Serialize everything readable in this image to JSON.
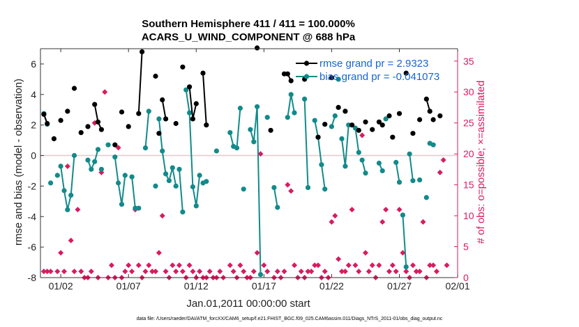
{
  "chart_data": {
    "type": "line",
    "title": [
      "Southern Hemisphere 411 / 411 = 100.000%",
      "ACARS_U_WIND_COMPONENT @ 688 hPa"
    ],
    "xlabel": "Jan.01,2011 00:00:00 start",
    "ylabel": "rmse and bias (model - observation)",
    "ylabel_right": "# of obs: o=possible; ×=assimilated",
    "xlim": [
      0.5,
      31.3
    ],
    "ylim": [
      -8,
      7
    ],
    "ylim_right": [
      0,
      37
    ],
    "xticks": [
      {
        "v": 2,
        "label": "01/02"
      },
      {
        "v": 7,
        "label": "01/07"
      },
      {
        "v": 12,
        "label": "01/12"
      },
      {
        "v": 17,
        "label": "01/17"
      },
      {
        "v": 22,
        "label": "01/22"
      },
      {
        "v": 27,
        "label": "01/27"
      },
      {
        "v": 31.3,
        "label": "02/01"
      }
    ],
    "yticks": [
      -8,
      -6,
      -4,
      -2,
      0,
      2,
      4,
      6
    ],
    "yticks_right": [
      0,
      5,
      10,
      15,
      20,
      25,
      30,
      35
    ],
    "legend_position": "top-right",
    "colors": {
      "rmse": "#000000",
      "bias": "#128a8a",
      "obs": "#d81b60",
      "zero": "#e6c8cc",
      "legend_text": "#1565d8"
    },
    "series": [
      {
        "name": "rmse grand pr = 2.9323",
        "key": "rmse",
        "segments": [
          [
            [
              0.75,
              2.7
            ],
            [
              1.0,
              2.1
            ]
          ],
          [
            [
              1.5,
              1.1
            ]
          ],
          [
            [
              2.0,
              2.3
            ]
          ],
          [
            [
              2.5,
              2.9
            ]
          ],
          [
            [
              3.0,
              4.4
            ]
          ],
          [
            [
              3.5,
              1.5
            ]
          ],
          [
            [
              4.0,
              1.9
            ]
          ],
          [
            [
              4.5,
              3.35
            ],
            [
              4.75,
              2.2
            ],
            [
              5.0,
              1.7
            ]
          ],
          [
            [
              6.0,
              0.7
            ]
          ],
          [
            [
              6.5,
              2.85
            ]
          ],
          [
            [
              7.0,
              1.9
            ]
          ],
          [
            [
              7.75,
              2.75
            ],
            [
              8.0,
              6.8
            ]
          ],
          [
            [
              9.0,
              5.2
            ]
          ],
          [
            [
              9.25,
              1.45
            ]
          ],
          [
            [
              9.5,
              3.65
            ],
            [
              9.75,
              2.4
            ]
          ],
          [
            [
              10.5,
              2.1
            ]
          ],
          [
            [
              11.0,
              5.8
            ]
          ],
          [
            [
              11.5,
              4.5
            ],
            [
              11.75,
              2.4
            ],
            [
              12.0,
              3.4
            ]
          ],
          [
            [
              12.5,
              5.4
            ],
            [
              12.75,
              2.0
            ]
          ],
          [
            [
              16.5,
              7.05
            ]
          ],
          [
            [
              17.5,
              1.65
            ]
          ],
          [
            [
              18.5,
              5.35
            ],
            [
              18.75,
              5.35
            ],
            [
              19.0,
              4.9
            ]
          ],
          [
            [
              20.0,
              5.0
            ]
          ],
          [
            [
              21.0,
              1.2
            ]
          ],
          [
            [
              21.5,
              2.05
            ]
          ],
          [
            [
              22.0,
              5.1
            ]
          ],
          [
            [
              22.5,
              3.15
            ]
          ],
          [
            [
              23.0,
              2.9
            ]
          ],
          [
            [
              23.5,
              2.0
            ]
          ],
          [
            [
              24.0,
              1.65
            ]
          ],
          [
            [
              24.5,
              2.2
            ]
          ],
          [
            [
              25.0,
              1.7
            ]
          ],
          [
            [
              25.5,
              2.2
            ],
            [
              25.75,
              2.0
            ]
          ],
          [
            [
              26.25,
              2.6
            ]
          ],
          [
            [
              26.5,
              1.2
            ]
          ],
          [
            [
              27.0,
              2.75
            ]
          ],
          [
            [
              27.5,
              5.4
            ]
          ],
          [
            [
              28.0,
              1.45
            ]
          ],
          [
            [
              28.5,
              2.35
            ]
          ],
          [
            [
              29.0,
              3.7
            ],
            [
              29.25,
              2.9
            ]
          ],
          [
            [
              29.5,
              2.35
            ]
          ],
          [
            [
              30.0,
              2.6
            ]
          ]
        ]
      },
      {
        "name": "bias grand pr = -0.041073",
        "key": "bias",
        "segments": [
          [
            [
              0.75,
              2.75
            ],
            [
              1.0,
              2.05
            ]
          ],
          [
            [
              1.25,
              -1.8
            ]
          ],
          [
            [
              1.75,
              -1.3
            ]
          ],
          [
            [
              2.0,
              -0.7
            ],
            [
              2.25,
              -2.3
            ],
            [
              2.5,
              -3.55
            ],
            [
              2.75,
              -2.6
            ],
            [
              3.0,
              0.0
            ]
          ],
          [
            [
              4.0,
              -0.3
            ],
            [
              4.25,
              -0.9
            ],
            [
              4.5,
              -0.4
            ],
            [
              4.75,
              0.4
            ]
          ],
          [
            [
              5.0,
              -0.9
            ]
          ],
          [
            [
              5.5,
              0.7
            ]
          ],
          [
            [
              6.0,
              -0.1
            ],
            [
              6.25,
              -1.8
            ],
            [
              6.5,
              -3.2
            ],
            [
              6.75,
              -1.3
            ]
          ],
          [
            [
              7.25,
              -1.4
            ],
            [
              7.5,
              -3.45
            ],
            [
              7.75,
              -3.45
            ]
          ],
          [
            [
              8.25,
              0.5
            ],
            [
              8.5,
              2.9
            ]
          ],
          [
            [
              9.0,
              -2.0
            ]
          ],
          [
            [
              9.25,
              2.4
            ],
            [
              9.5,
              0.3
            ],
            [
              9.75,
              -1.2
            ],
            [
              10.0,
              -1.65
            ],
            [
              10.25,
              -0.8
            ],
            [
              10.5,
              -2.0
            ]
          ],
          [
            [
              10.75,
              -0.9
            ],
            [
              11.0,
              -3.7
            ]
          ],
          [
            [
              11.25,
              4.3
            ],
            [
              11.5,
              2.8
            ],
            [
              11.75,
              -2.05
            ],
            [
              12.0,
              -3.3
            ],
            [
              12.25,
              -1.3
            ]
          ],
          [
            [
              12.5,
              -1.8
            ]
          ],
          [
            [
              12.75,
              -1.7
            ]
          ],
          [
            [
              13.5,
              0.3
            ]
          ],
          [
            [
              14.5,
              1.5
            ],
            [
              14.75,
              0.6
            ]
          ],
          [
            [
              15.0,
              0.5
            ],
            [
              15.25,
              3.1
            ]
          ],
          [
            [
              15.5,
              -2.2
            ]
          ],
          [
            [
              16.0,
              1.7
            ],
            [
              16.25,
              0.9
            ],
            [
              16.5,
              3.2
            ],
            [
              16.75,
              -7.8
            ]
          ],
          [
            [
              17.25,
              2.5
            ]
          ],
          [
            [
              17.75,
              -2.1
            ],
            [
              18.0,
              -3.4
            ]
          ],
          [
            [
              18.75,
              2.5
            ],
            [
              19.0,
              4.0
            ],
            [
              19.25,
              2.8
            ]
          ],
          [
            [
              20.0,
              3.7
            ],
            [
              20.25,
              -2.1
            ]
          ],
          [
            [
              20.75,
              2.3
            ],
            [
              21.0,
              1.2
            ],
            [
              21.25,
              -0.6
            ],
            [
              21.5,
              -2.2
            ]
          ],
          [
            [
              22.0,
              1.9
            ],
            [
              22.25,
              2.6
            ]
          ],
          [
            [
              22.5,
              5.0
            ]
          ],
          [
            [
              22.75,
              1.1
            ],
            [
              23.0,
              -0.7
            ],
            [
              23.25,
              2.0
            ]
          ],
          [
            [
              23.75,
              1.8
            ],
            [
              24.0,
              0.2
            ]
          ],
          [
            [
              24.25,
              -0.3
            ],
            [
              24.5,
              -1.15
            ]
          ],
          [
            [
              25.5,
              -0.5
            ],
            [
              25.75,
              -1.0
            ]
          ],
          [
            [
              26.0,
              2.4
            ]
          ],
          [
            [
              26.75,
              -0.45
            ],
            [
              27.0,
              -1.75
            ]
          ],
          [
            [
              27.25,
              -3.9
            ],
            [
              27.5,
              -7.3
            ]
          ],
          [
            [
              27.75,
              0.1
            ],
            [
              28.0,
              -1.65
            ]
          ],
          [
            [
              28.5,
              -1.6
            ]
          ],
          [
            [
              29.0,
              -2.75
            ]
          ],
          [
            [
              29.25,
              0.8
            ]
          ],
          [
            [
              29.5,
              0.7
            ]
          ]
        ]
      },
      {
        "name": "# of obs assimilated",
        "key": "obs",
        "axis": "right",
        "x": [
          0.75,
          1.0,
          1.25,
          1.75,
          2.0,
          2.25,
          2.5,
          2.75,
          3.0,
          3.25,
          3.5,
          3.75,
          4.0,
          4.25,
          4.5,
          4.75,
          5.0,
          5.25,
          5.5,
          5.75,
          6.0,
          6.25,
          6.5,
          6.75,
          7.0,
          7.25,
          7.5,
          7.75,
          8.0,
          8.25,
          8.5,
          8.75,
          9.0,
          9.25,
          9.5,
          9.75,
          10.0,
          10.25,
          10.5,
          10.75,
          11.0,
          11.25,
          11.5,
          11.75,
          12.0,
          12.25,
          12.5,
          12.75,
          13.0,
          13.25,
          13.5,
          13.75,
          14.0,
          14.5,
          14.75,
          15.0,
          15.25,
          15.5,
          15.75,
          16.0,
          16.25,
          16.5,
          16.75,
          17.0,
          17.25,
          17.75,
          18.0,
          18.25,
          18.5,
          18.75,
          19.0,
          19.25,
          19.5,
          19.75,
          20.0,
          20.25,
          20.5,
          20.75,
          21.0,
          21.25,
          21.5,
          21.75,
          22.0,
          22.25,
          22.5,
          22.75,
          23.0,
          23.25,
          23.5,
          23.75,
          24.0,
          24.25,
          24.5,
          24.75,
          25.0,
          25.25,
          25.5,
          25.75,
          26.0,
          26.25,
          26.5,
          26.75,
          27.0,
          27.25,
          27.5,
          27.75,
          28.0,
          28.25,
          28.5,
          28.75,
          29.0,
          29.25,
          29.5,
          29.75,
          30.0,
          30.25,
          30.5
        ],
        "values": [
          1,
          1,
          1,
          1,
          4,
          1,
          18,
          6,
          1,
          11,
          1,
          0,
          0,
          1,
          25,
          0,
          17,
          30,
          0,
          2,
          0,
          21,
          0,
          1,
          2,
          1,
          11,
          2,
          0,
          1,
          2,
          1,
          1,
          4,
          10,
          1,
          0,
          2,
          1,
          2,
          1,
          0,
          2,
          1,
          0,
          1,
          0,
          0,
          1,
          0,
          0,
          1,
          0,
          2,
          1,
          0,
          2,
          1,
          0,
          0,
          1,
          4,
          20,
          2,
          1,
          0,
          1,
          0,
          1,
          15,
          14,
          2,
          0,
          1,
          0,
          1,
          1,
          2,
          2,
          0,
          1,
          0,
          9,
          10,
          3,
          1,
          1,
          2,
          11,
          2,
          1,
          23,
          4,
          1,
          2,
          0,
          2,
          9,
          11,
          1,
          2,
          1,
          11,
          4,
          1,
          0,
          2,
          1,
          1,
          9,
          0,
          2,
          2,
          1,
          17,
          19,
          2
        ]
      }
    ]
  },
  "footer": "data file: /Users/raeder/DAI/ATM_forcXX/CAM6_setup/f.e21.FHIST_BGC.f09_025.CAM6assim.011/Diags_NTrS_2011-01/obs_diag_output.nc"
}
